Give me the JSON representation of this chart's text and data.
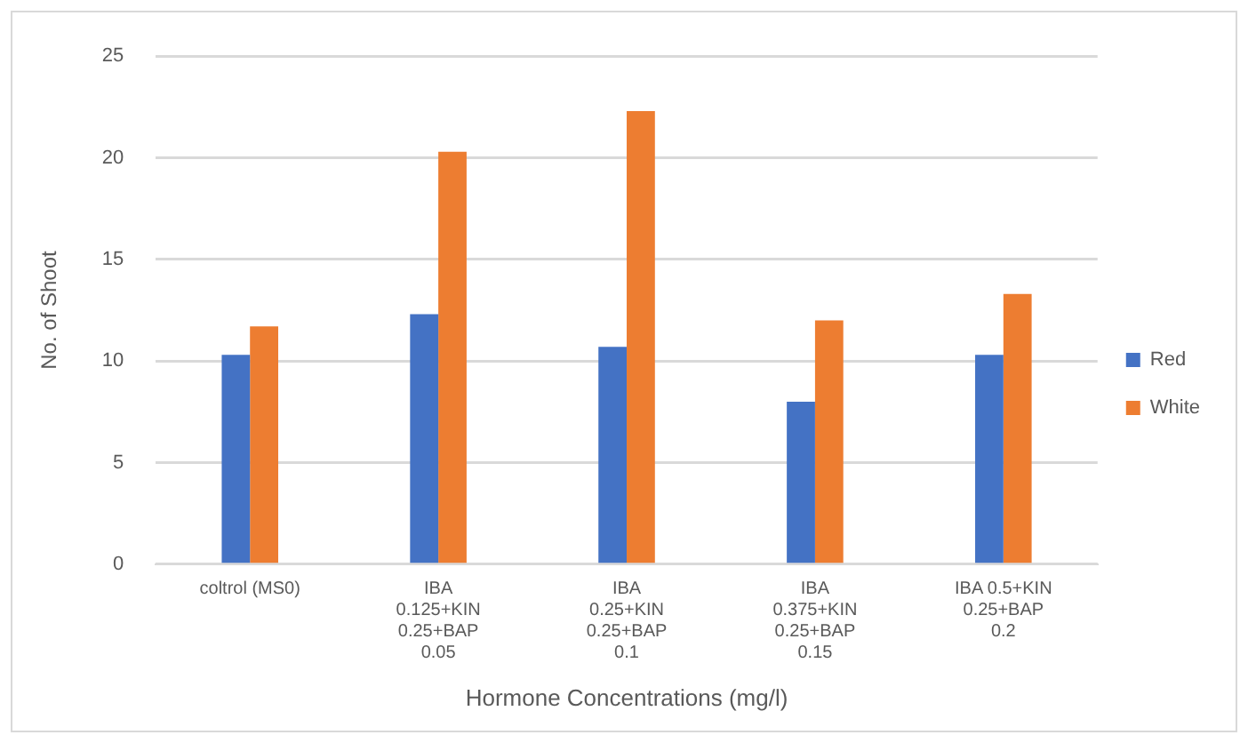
{
  "chart_data": {
    "type": "bar",
    "xlabel": "Hormone Concentrations (mg/l)",
    "ylabel": "No. of Shoot",
    "categories": [
      "coltrol (MS0)",
      "IBA 0.125+KIN 0.25+BAP 0.05",
      "IBA 0.25+KIN 0.25+BAP 0.1",
      "IBA 0.375+KIN 0.25+BAP 0.15",
      "IBA 0.5+KIN 0.25+BAP 0.2"
    ],
    "series": [
      {
        "name": "Red",
        "color": "#4472c4",
        "values": [
          10.3,
          12.3,
          10.7,
          8.0,
          10.3
        ]
      },
      {
        "name": "White",
        "color": "#ed7d31",
        "values": [
          11.7,
          20.3,
          22.3,
          12.0,
          13.3
        ]
      }
    ],
    "ylim": [
      0,
      25
    ],
    "yticks": [
      0,
      5,
      10,
      15,
      20,
      25
    ],
    "grid": "y",
    "legend": "right"
  }
}
